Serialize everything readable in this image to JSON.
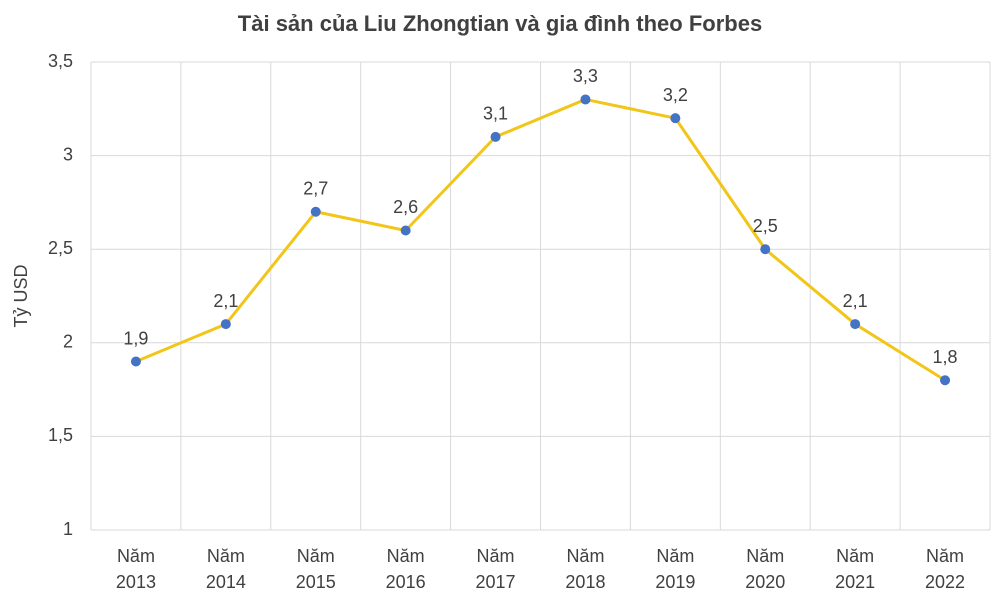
{
  "chart_data": {
    "type": "line",
    "title": "Tài sản của Liu Zhongtian và gia đình theo Forbes",
    "y_label": "Tỷ USD",
    "categories": [
      "Năm 2013",
      "Năm 2014",
      "Năm 2015",
      "Năm 2016",
      "Năm 2017",
      "Năm 2018",
      "Năm 2019",
      "Năm 2020",
      "Năm 2021",
      "Năm 2022"
    ],
    "series": [
      {
        "color": "#f2c519",
        "marker_color": "#4472c4",
        "values": [
          1.9,
          2.1,
          2.7,
          2.6,
          3.1,
          3.3,
          3.2,
          2.5,
          2.1,
          1.8
        ],
        "value_labels": [
          "1,9",
          "2,1",
          "2,7",
          "2,6",
          "3,1",
          "3,3",
          "3,2",
          "2,5",
          "2,1",
          "1,8"
        ]
      }
    ],
    "ylim": [
      1,
      3.5
    ],
    "yticks": [
      1,
      {
        "value": 1.5,
        "label": "1,5"
      },
      2,
      {
        "value": 2.5,
        "label": "2,5"
      },
      3,
      {
        "value": 3.5,
        "label": "3,5"
      }
    ],
    "grid": true
  }
}
